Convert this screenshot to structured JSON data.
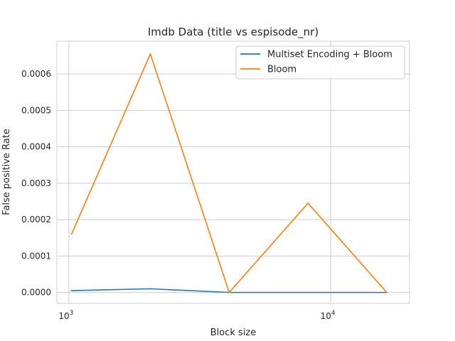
{
  "chart_data": {
    "type": "line",
    "title": "Imdb Data (title vs espisode_nr)",
    "xlabel": "Block size",
    "ylabel": "False positive Rate",
    "xscale": "log",
    "xlim": [
      900,
      20000
    ],
    "ylim": [
      -3e-05,
      0.00069
    ],
    "grid": true,
    "legend_position": "top-right",
    "x": [
      1024,
      2048,
      4096,
      8192,
      16384
    ],
    "yticks": [
      0,
      0.0001,
      0.0002,
      0.0003,
      0.0004,
      0.0005,
      0.0006
    ],
    "ytick_labels": [
      "0.0000",
      "0.0001",
      "0.0002",
      "0.0003",
      "0.0004",
      "0.0005",
      "0.0006"
    ],
    "xticks": [
      {
        "value": 1000,
        "base": "10",
        "exp": "3"
      },
      {
        "value": 10000,
        "base": "10",
        "exp": "4"
      }
    ],
    "series": [
      {
        "name": "Multiset Encoding + Bloom",
        "color": "#1f77b4",
        "values": [
          5e-06,
          1e-05,
          0.0,
          0.0,
          0.0
        ]
      },
      {
        "name": "Bloom",
        "color": "#ff7f0e",
        "values": [
          0.00016,
          0.000655,
          0.0,
          0.000245,
          0.0
        ]
      }
    ]
  }
}
